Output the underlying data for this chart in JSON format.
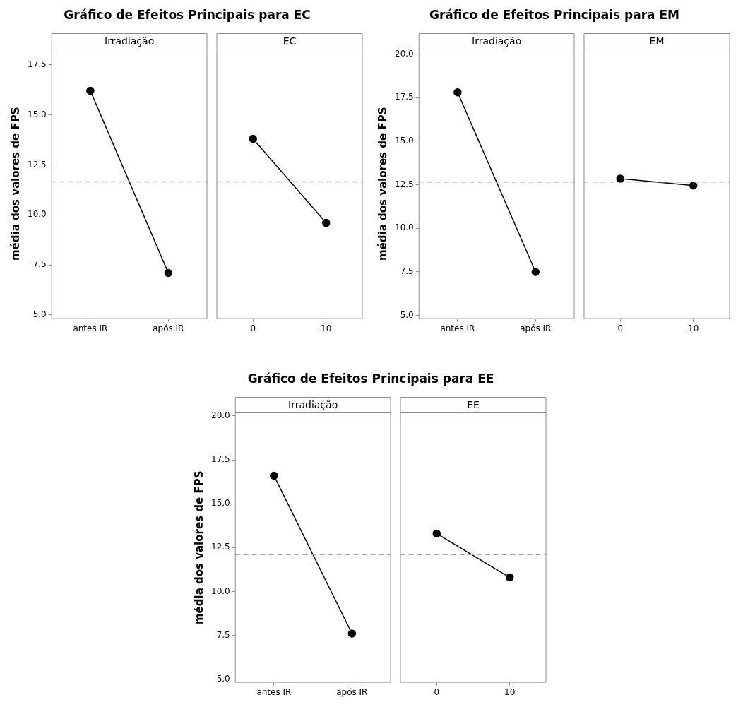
{
  "chart_data": [
    {
      "type": "line",
      "title": "Gráfico de Efeitos Principais para EC",
      "subtitle": "Irradiação",
      "ylabel": "média dos valores de FPS",
      "categories": [
        "antes IR",
        "após IR"
      ],
      "marker": "circle",
      "series": [
        {
          "color": "#000000",
          "values": [
            16.2,
            7.1
          ]
        }
      ],
      "ylim": [
        4.8,
        18.3
      ],
      "yticks": [
        {
          "value": 5,
          "label": "5.0"
        },
        {
          "value": 7.5,
          "label": "7.5"
        },
        {
          "value": 10,
          "label": "10.0"
        },
        {
          "value": 12.5,
          "label": "12.5"
        },
        {
          "value": 15,
          "label": "15.0"
        },
        {
          "value": 17.5,
          "label": "17.5"
        }
      ],
      "ref_lines": [
        {
          "axis": "y",
          "value": 11.65,
          "color": "#a6a6a6",
          "line_style": "dashed"
        }
      ]
    },
    {
      "type": "line",
      "subtitle": "EC",
      "categories": [
        "0",
        "10"
      ],
      "marker": "circle",
      "series": [
        {
          "color": "#000000",
          "values": [
            13.8,
            9.6
          ]
        }
      ],
      "ylim": [
        4.8,
        18.3
      ],
      "tick_labels": "x",
      "ref_lines": [
        {
          "axis": "y",
          "value": 11.65,
          "color": "#a6a6a6",
          "line_style": "dashed"
        }
      ]
    },
    {
      "type": "line",
      "title": "Gráfico de Efeitos Principais para EM",
      "subtitle": "Irradiação",
      "ylabel": "média dos valores de FPS",
      "categories": [
        "antes IR",
        "após IR"
      ],
      "marker": "circle",
      "series": [
        {
          "color": "#000000",
          "values": [
            17.8,
            7.5
          ]
        }
      ],
      "ylim": [
        4.8,
        20.3
      ],
      "yticks": [
        {
          "value": 5,
          "label": "5.0"
        },
        {
          "value": 7.5,
          "label": "7.5"
        },
        {
          "value": 10,
          "label": "10.0"
        },
        {
          "value": 12.5,
          "label": "12.5"
        },
        {
          "value": 15,
          "label": "15.0"
        },
        {
          "value": 17.5,
          "label": "17.5"
        },
        {
          "value": 20,
          "label": "20.0"
        }
      ],
      "ref_lines": [
        {
          "axis": "y",
          "value": 12.65,
          "color": "#a6a6a6",
          "line_style": "dashed"
        }
      ]
    },
    {
      "type": "line",
      "subtitle": "EM",
      "categories": [
        "0",
        "10"
      ],
      "marker": "circle",
      "series": [
        {
          "color": "#000000",
          "values": [
            12.85,
            12.45
          ]
        }
      ],
      "ylim": [
        4.8,
        20.3
      ],
      "tick_labels": "x",
      "ref_lines": [
        {
          "axis": "y",
          "value": 12.65,
          "color": "#a6a6a6",
          "line_style": "dashed"
        }
      ]
    },
    {
      "type": "line",
      "title": "Gráfico de Efeitos Principais para EE",
      "subtitle": "Irradiação",
      "ylabel": "média dos valores de FPS",
      "categories": [
        "antes IR",
        "após IR"
      ],
      "marker": "circle",
      "series": [
        {
          "color": "#000000",
          "values": [
            16.6,
            7.6
          ]
        }
      ],
      "ylim": [
        4.8,
        20.2
      ],
      "yticks": [
        {
          "value": 5,
          "label": "5.0"
        },
        {
          "value": 7.5,
          "label": "7.5"
        },
        {
          "value": 10,
          "label": "10.0"
        },
        {
          "value": 12.5,
          "label": "12.5"
        },
        {
          "value": 15,
          "label": "15.0"
        },
        {
          "value": 17.5,
          "label": "17.5"
        },
        {
          "value": 20,
          "label": "20.0"
        }
      ],
      "ref_lines": [
        {
          "axis": "y",
          "value": 12.1,
          "color": "#a6a6a6",
          "line_style": "dashed"
        }
      ]
    },
    {
      "type": "line",
      "subtitle": "EE",
      "categories": [
        "0",
        "10"
      ],
      "marker": "circle",
      "series": [
        {
          "color": "#000000",
          "values": [
            13.3,
            10.8
          ]
        }
      ],
      "ylim": [
        4.8,
        20.2
      ],
      "tick_labels": "x",
      "ref_lines": [
        {
          "axis": "y",
          "value": 12.1,
          "color": "#a6a6a6",
          "line_style": "dashed"
        }
      ]
    }
  ]
}
